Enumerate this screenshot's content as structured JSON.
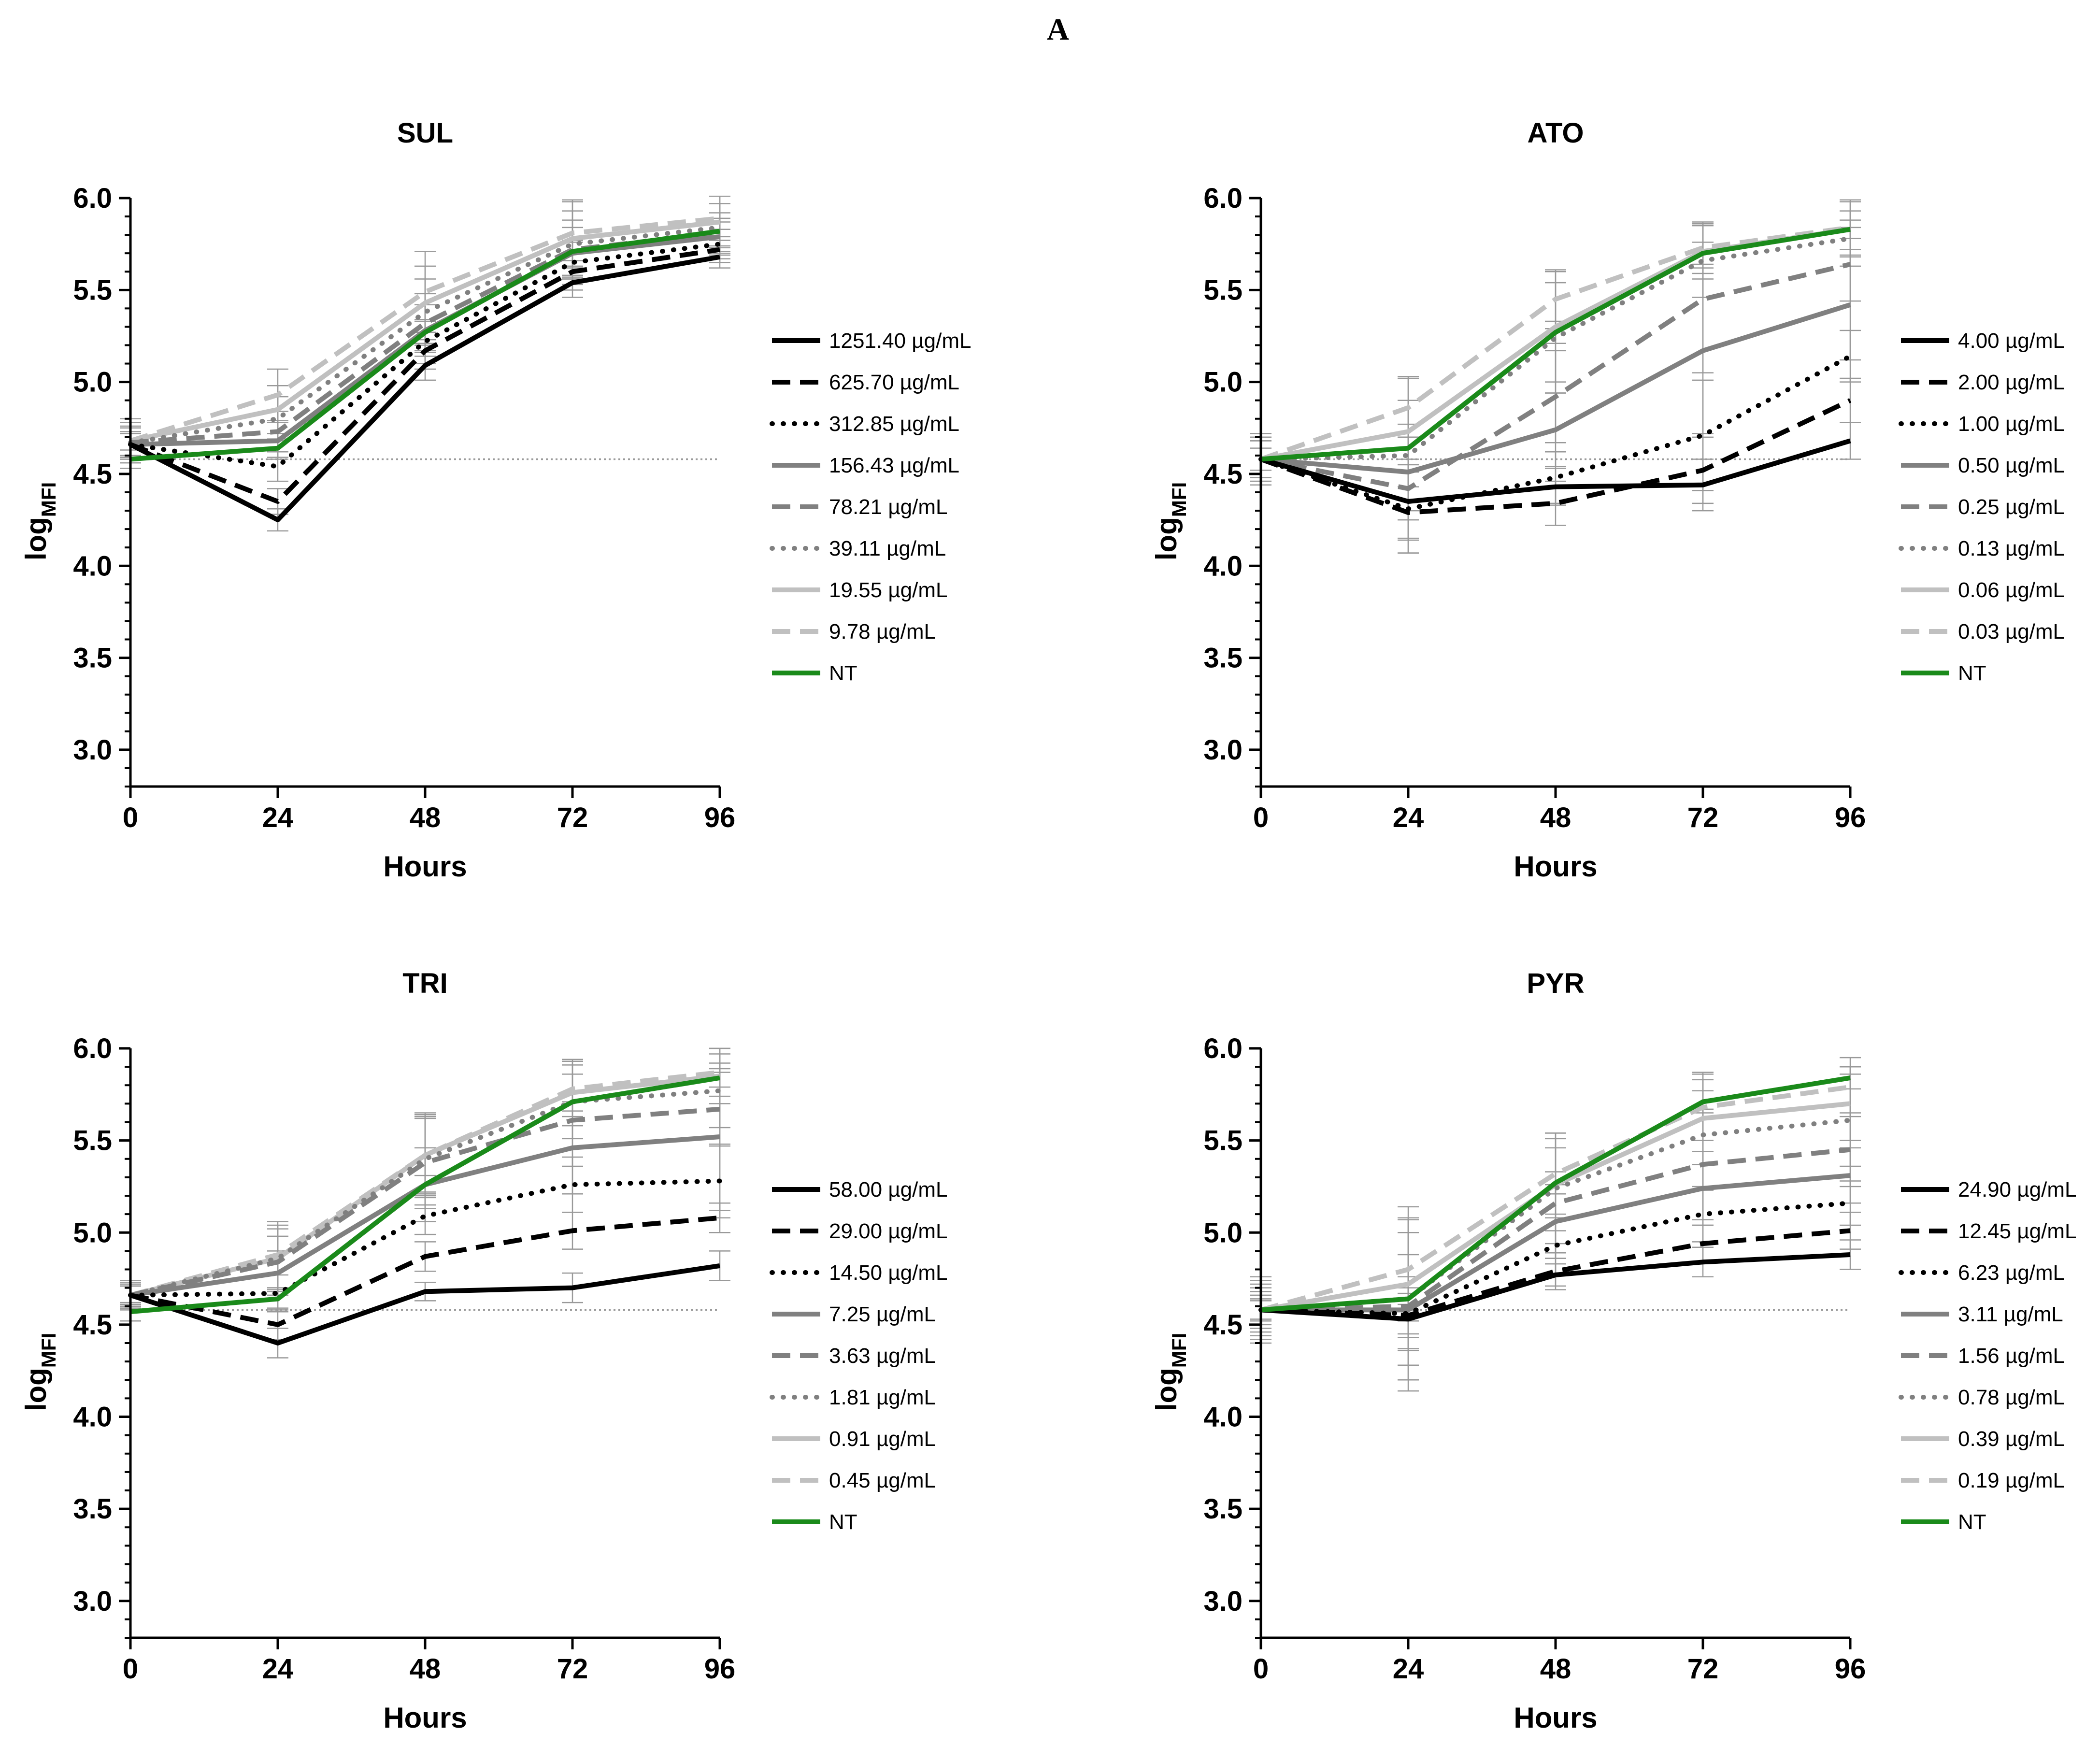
{
  "figure_label": "A",
  "style": {
    "colors": [
      "#000000",
      "#000000",
      "#000000",
      "#808080",
      "#808080",
      "#808080",
      "#c0c0c0",
      "#c0c0c0",
      "#1a8a1a"
    ],
    "dash": [
      "solid",
      "dash",
      "dot",
      "solid",
      "dash",
      "dot",
      "solid",
      "dash",
      "solid"
    ],
    "error_bar_color": "#999999",
    "baseline_color": "#9a9a9a"
  },
  "chart_data": [
    {
      "type": "line",
      "title": "SUL",
      "xlabel": "Hours",
      "ylabel": "log",
      "ylabel_sub": "MFI",
      "x": [
        0,
        24,
        48,
        72,
        96
      ],
      "xticks": [
        "0",
        "24",
        "48",
        "72",
        "96"
      ],
      "yticks": [
        "3.0",
        "3.5",
        "4.0",
        "4.5",
        "5.0",
        "5.5",
        "6.0"
      ],
      "ylim": [
        2.8,
        6.0
      ],
      "baseline": 4.58,
      "series": [
        {
          "name": "1251.40 µg/mL",
          "values": [
            4.66,
            4.25,
            5.09,
            5.54,
            5.68
          ],
          "err": [
            0.06,
            0.06,
            0.08,
            0.08,
            0.06
          ]
        },
        {
          "name": "625.70 µg/mL",
          "values": [
            4.66,
            4.35,
            5.17,
            5.6,
            5.72
          ],
          "err": [
            0.06,
            0.07,
            0.1,
            0.1,
            0.07
          ]
        },
        {
          "name": "312.85 µg/mL",
          "values": [
            4.66,
            4.54,
            5.22,
            5.65,
            5.75
          ],
          "err": [
            0.06,
            0.08,
            0.12,
            0.12,
            0.08
          ]
        },
        {
          "name": "156.43 µg/mL",
          "values": [
            4.66,
            4.68,
            5.28,
            5.7,
            5.79
          ],
          "err": [
            0.07,
            0.1,
            0.14,
            0.14,
            0.1
          ]
        },
        {
          "name": "78.21 µg/mL",
          "values": [
            4.67,
            4.73,
            5.32,
            5.72,
            5.81
          ],
          "err": [
            0.08,
            0.11,
            0.16,
            0.16,
            0.11
          ]
        },
        {
          "name": "39.11 µg/mL",
          "values": [
            4.67,
            4.8,
            5.38,
            5.75,
            5.84
          ],
          "err": [
            0.09,
            0.12,
            0.18,
            0.18,
            0.13
          ]
        },
        {
          "name": "19.55 µg/mL",
          "values": [
            4.68,
            4.85,
            5.43,
            5.78,
            5.87
          ],
          "err": [
            0.1,
            0.13,
            0.2,
            0.2,
            0.14
          ]
        },
        {
          "name": "9.78 µg/mL",
          "values": [
            4.68,
            4.93,
            5.49,
            5.81,
            5.89
          ],
          "err": [
            0.12,
            0.14,
            0.22,
            0.18,
            0.12
          ]
        },
        {
          "name": "NT",
          "values": [
            4.58,
            4.64,
            5.27,
            5.71,
            5.82
          ],
          "err": [
            0.05,
            0.05,
            0.06,
            0.05,
            0.05
          ]
        }
      ]
    },
    {
      "type": "line",
      "title": "ATO",
      "xlabel": "Hours",
      "ylabel": "log",
      "ylabel_sub": "MFI",
      "x": [
        0,
        24,
        48,
        72,
        96
      ],
      "xticks": [
        "0",
        "24",
        "48",
        "72",
        "96"
      ],
      "yticks": [
        "3.0",
        "3.5",
        "4.0",
        "4.5",
        "5.0",
        "5.5",
        "6.0"
      ],
      "ylim": [
        2.8,
        6.0
      ],
      "baseline": 4.58,
      "series": [
        {
          "name": "4.00 µg/mL",
          "values": [
            4.58,
            4.35,
            4.43,
            4.44,
            4.68
          ],
          "err": [
            0.1,
            0.2,
            0.1,
            0.14,
            0.1
          ]
        },
        {
          "name": "2.00 µg/mL",
          "values": [
            4.58,
            4.29,
            4.34,
            4.52,
            4.9
          ],
          "err": [
            0.1,
            0.22,
            0.12,
            0.18,
            0.12
          ]
        },
        {
          "name": "1.00 µg/mL",
          "values": [
            4.58,
            4.31,
            4.48,
            4.71,
            5.14
          ],
          "err": [
            0.1,
            0.24,
            0.14,
            0.3,
            0.14
          ]
        },
        {
          "name": "0.50 µg/mL",
          "values": [
            4.58,
            4.51,
            4.74,
            5.17,
            5.42
          ],
          "err": [
            0.12,
            0.26,
            0.2,
            0.45,
            0.3
          ]
        },
        {
          "name": "0.25 µg/mL",
          "values": [
            4.58,
            4.42,
            4.92,
            5.45,
            5.64
          ],
          "err": [
            0.12,
            0.28,
            0.25,
            0.4,
            0.2
          ]
        },
        {
          "name": "0.13 µg/mL",
          "values": [
            4.58,
            4.6,
            5.24,
            5.66,
            5.78
          ],
          "err": [
            0.14,
            0.3,
            0.3,
            0.2,
            0.15
          ]
        },
        {
          "name": "0.06 µg/mL",
          "values": [
            4.58,
            4.73,
            5.3,
            5.71,
            5.83
          ],
          "err": [
            0.14,
            0.3,
            0.3,
            0.15,
            0.15
          ]
        },
        {
          "name": "0.03 µg/mL",
          "values": [
            4.58,
            4.86,
            5.45,
            5.73,
            5.84
          ],
          "err": [
            0.14,
            0.16,
            0.16,
            0.14,
            0.15
          ]
        },
        {
          "name": "NT",
          "values": [
            4.58,
            4.64,
            5.27,
            5.7,
            5.83
          ],
          "err": [
            0.06,
            0.06,
            0.06,
            0.06,
            0.05
          ]
        }
      ]
    },
    {
      "type": "line",
      "title": "TRI",
      "xlabel": "Hours",
      "ylabel": "log",
      "ylabel_sub": "MFI",
      "x": [
        0,
        24,
        48,
        72,
        96
      ],
      "xticks": [
        "0",
        "24",
        "48",
        "72",
        "96"
      ],
      "yticks": [
        "3.0",
        "3.5",
        "4.0",
        "4.5",
        "5.0",
        "5.5",
        "6.0"
      ],
      "ylim": [
        2.8,
        6.0
      ],
      "baseline": 4.58,
      "series": [
        {
          "name": "58.00 µg/mL",
          "values": [
            4.66,
            4.4,
            4.68,
            4.7,
            4.82
          ],
          "err": [
            0.05,
            0.08,
            0.05,
            0.08,
            0.08
          ]
        },
        {
          "name": "29.00 µg/mL",
          "values": [
            4.66,
            4.5,
            4.87,
            5.01,
            5.08
          ],
          "err": [
            0.05,
            0.08,
            0.08,
            0.1,
            0.08
          ]
        },
        {
          "name": "14.50 µg/mL",
          "values": [
            4.66,
            4.67,
            5.09,
            5.26,
            5.28
          ],
          "err": [
            0.05,
            0.1,
            0.1,
            0.15,
            0.2
          ]
        },
        {
          "name": "7.25 µg/mL",
          "values": [
            4.66,
            4.78,
            5.26,
            5.46,
            5.52
          ],
          "err": [
            0.06,
            0.12,
            0.2,
            0.25,
            0.4
          ]
        },
        {
          "name": "3.63 µg/mL",
          "values": [
            4.66,
            4.84,
            5.38,
            5.61,
            5.67
          ],
          "err": [
            0.06,
            0.14,
            0.25,
            0.25,
            0.2
          ]
        },
        {
          "name": "1.81 µg/mL",
          "values": [
            4.66,
            4.86,
            5.4,
            5.71,
            5.77
          ],
          "err": [
            0.07,
            0.16,
            0.25,
            0.2,
            0.2
          ]
        },
        {
          "name": "0.91 µg/mL",
          "values": [
            4.66,
            4.86,
            5.42,
            5.76,
            5.85
          ],
          "err": [
            0.07,
            0.18,
            0.22,
            0.18,
            0.15
          ]
        },
        {
          "name": "0.45 µg/mL",
          "values": [
            4.66,
            4.88,
            5.42,
            5.78,
            5.87
          ],
          "err": [
            0.08,
            0.18,
            0.2,
            0.15,
            0.13
          ]
        },
        {
          "name": "NT",
          "values": [
            4.57,
            4.64,
            5.26,
            5.71,
            5.84
          ],
          "err": [
            0.05,
            0.05,
            0.05,
            0.05,
            0.05
          ]
        }
      ]
    },
    {
      "type": "line",
      "title": "PYR",
      "xlabel": "Hours",
      "ylabel": "log",
      "ylabel_sub": "MFI",
      "x": [
        0,
        24,
        48,
        72,
        96
      ],
      "xticks": [
        "0",
        "24",
        "48",
        "72",
        "96"
      ],
      "yticks": [
        "3.0",
        "3.5",
        "4.0",
        "4.5",
        "5.0",
        "5.5",
        "6.0"
      ],
      "ylim": [
        2.8,
        6.0
      ],
      "baseline": 4.58,
      "series": [
        {
          "name": "24.90 µg/mL",
          "values": [
            4.58,
            4.53,
            4.77,
            4.84,
            4.88
          ],
          "err": [
            0.05,
            0.08,
            0.06,
            0.08,
            0.08
          ]
        },
        {
          "name": "12.45 µg/mL",
          "values": [
            4.58,
            4.55,
            4.79,
            4.94,
            5.01
          ],
          "err": [
            0.06,
            0.12,
            0.1,
            0.1,
            0.1
          ]
        },
        {
          "name": "6.23 µg/mL",
          "values": [
            4.58,
            4.56,
            4.93,
            5.1,
            5.16
          ],
          "err": [
            0.08,
            0.2,
            0.15,
            0.15,
            0.12
          ]
        },
        {
          "name": "3.11 µg/mL",
          "values": [
            4.58,
            4.58,
            5.06,
            5.24,
            5.31
          ],
          "err": [
            0.1,
            0.3,
            0.2,
            0.2,
            0.15
          ]
        },
        {
          "name": "1.56 µg/mL",
          "values": [
            4.58,
            4.6,
            5.16,
            5.37,
            5.45
          ],
          "err": [
            0.12,
            0.4,
            0.3,
            0.3,
            0.2
          ]
        },
        {
          "name": "0.78 µg/mL",
          "values": [
            4.58,
            4.64,
            5.24,
            5.53,
            5.61
          ],
          "err": [
            0.14,
            0.5,
            0.3,
            0.3,
            0.25
          ]
        },
        {
          "name": "0.39 µg/mL",
          "values": [
            4.58,
            4.72,
            5.26,
            5.62,
            5.7
          ],
          "err": [
            0.16,
            0.35,
            0.25,
            0.25,
            0.2
          ]
        },
        {
          "name": "0.19 µg/mL",
          "values": [
            4.58,
            4.8,
            5.32,
            5.68,
            5.79
          ],
          "err": [
            0.18,
            0.28,
            0.22,
            0.18,
            0.16
          ]
        },
        {
          "name": "NT",
          "values": [
            4.58,
            4.64,
            5.27,
            5.71,
            5.84
          ],
          "err": [
            0.06,
            0.06,
            0.06,
            0.06,
            0.06
          ]
        }
      ]
    }
  ]
}
